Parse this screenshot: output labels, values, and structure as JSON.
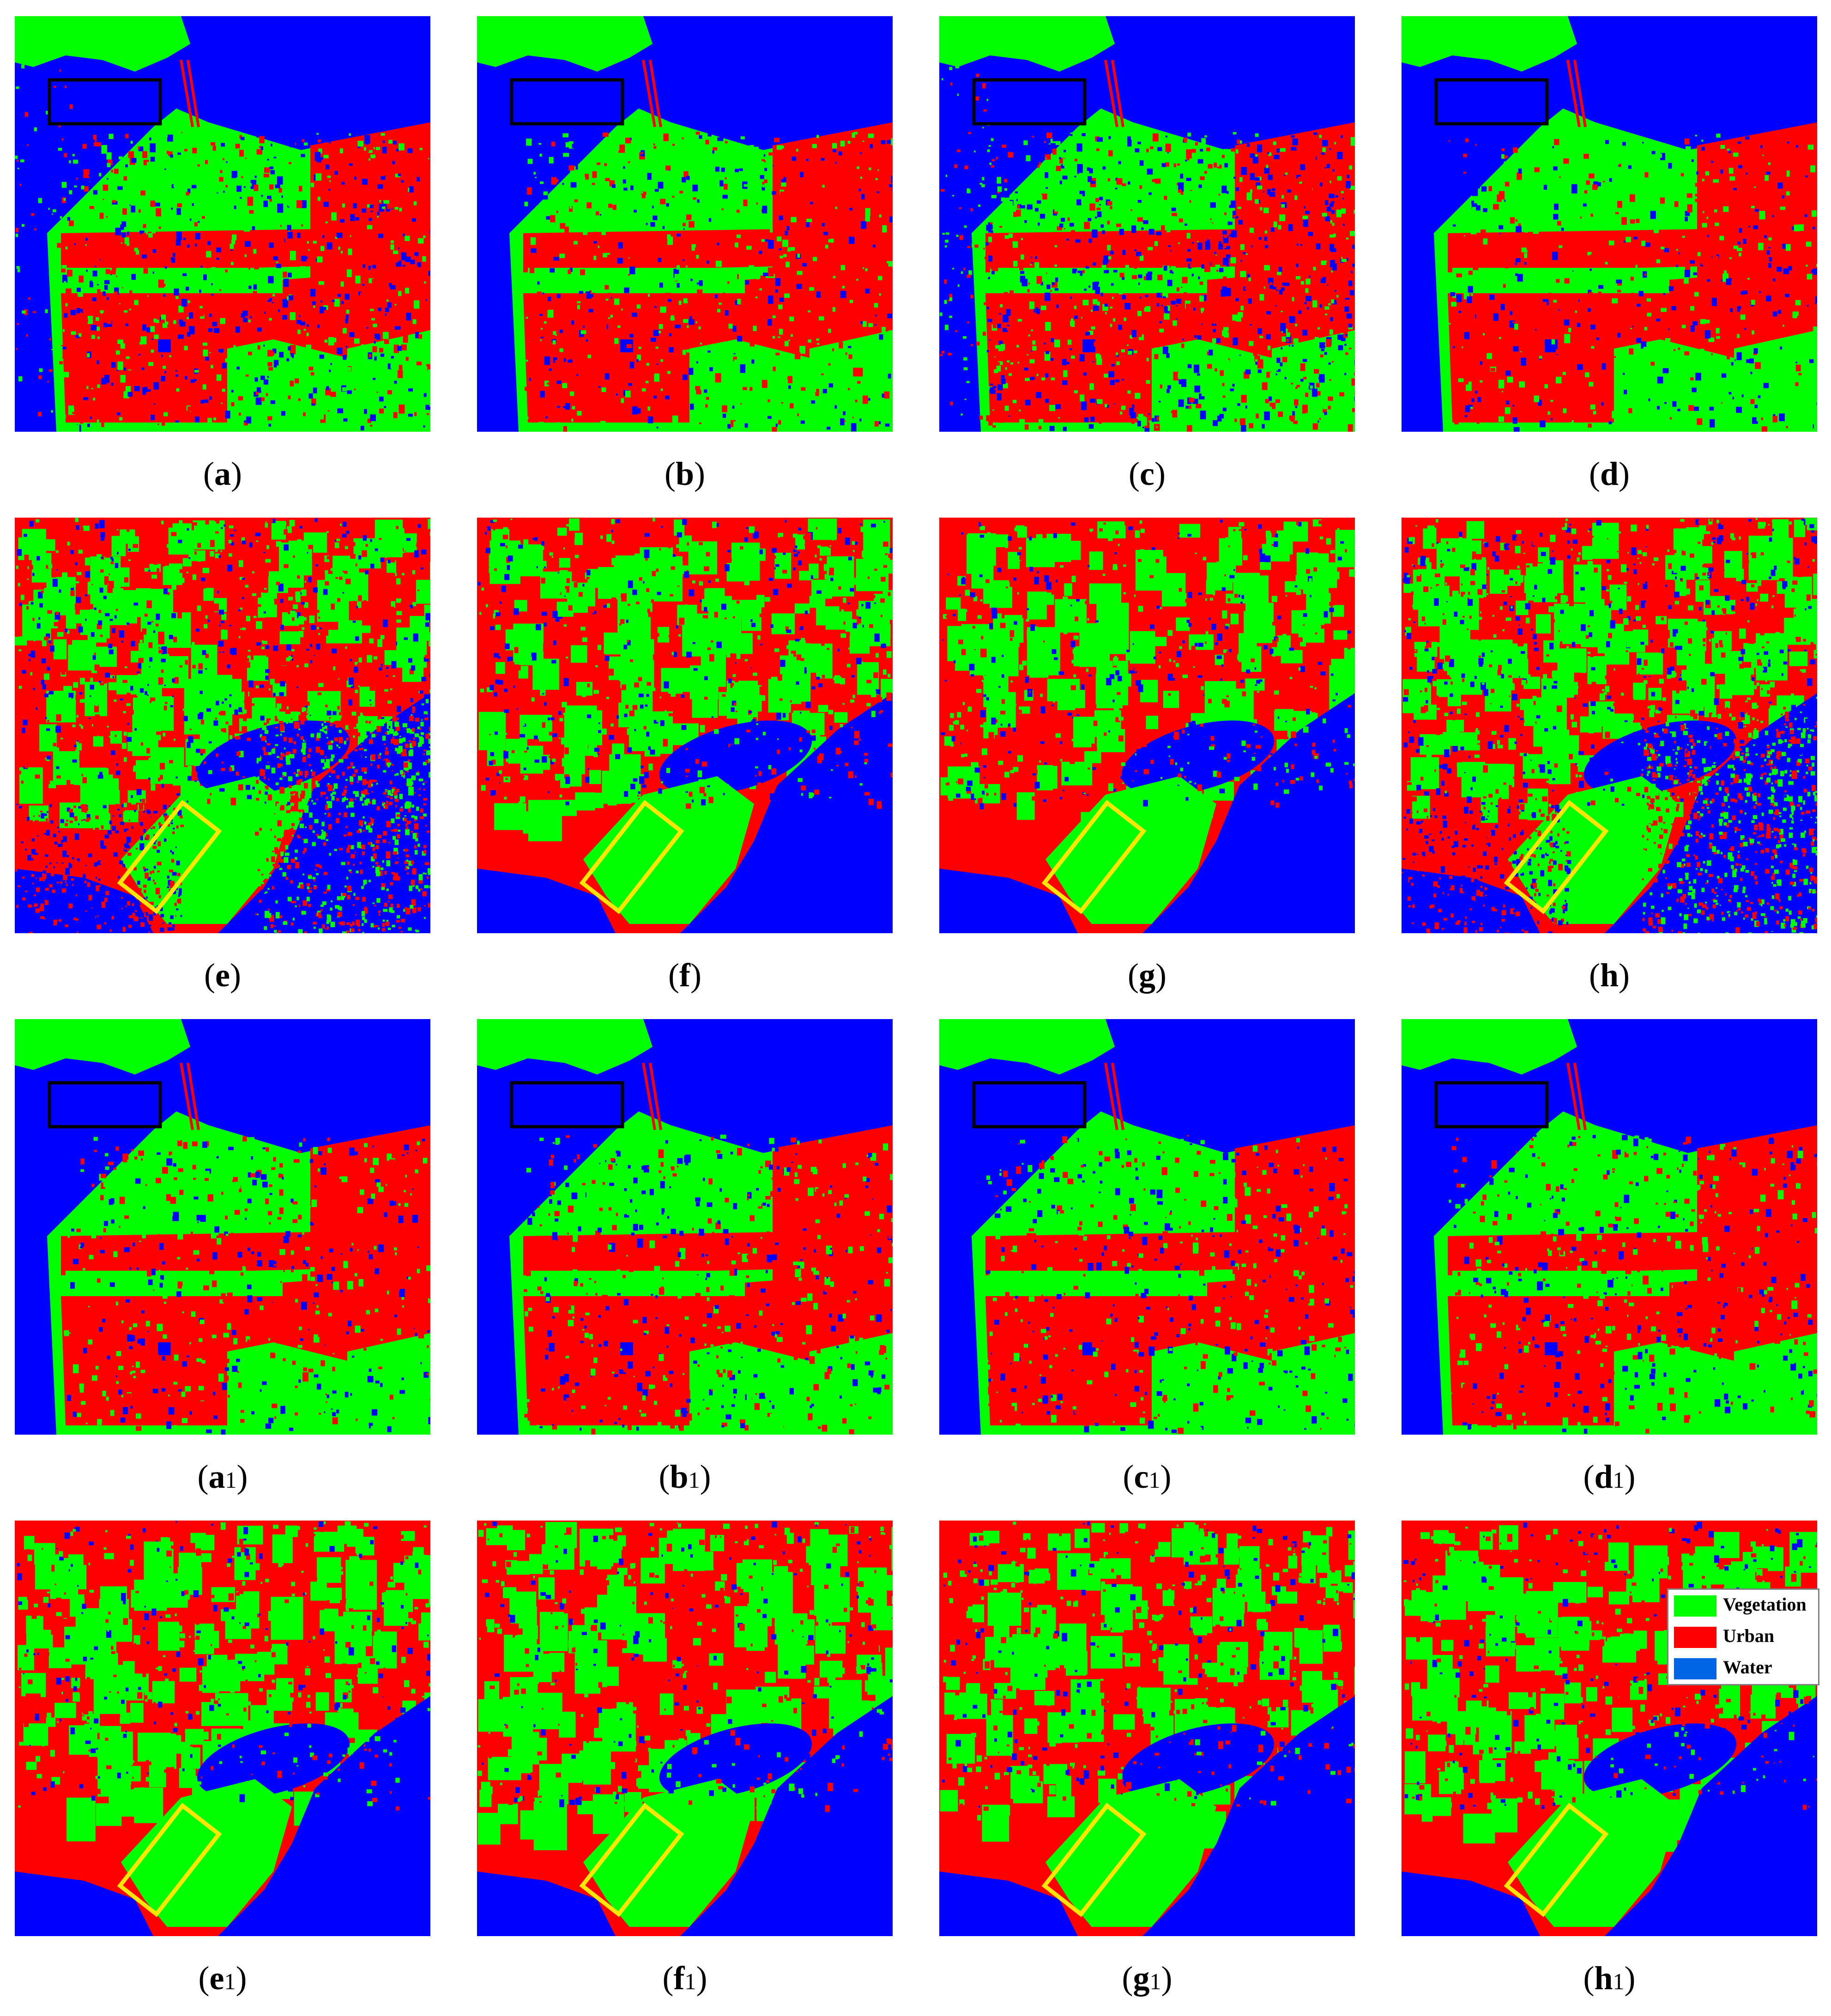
{
  "colors": {
    "vegetation": "#00ff00",
    "urban": "#ff0000",
    "water": "#0000ff",
    "legend_water": "#0064e6",
    "box_black": "#000000",
    "box_yellow": "#ffe600"
  },
  "panels": [
    {
      "id": "a",
      "letter": "a",
      "sub": "",
      "scene": "sf",
      "box": "black",
      "noise": 0.55
    },
    {
      "id": "b",
      "letter": "b",
      "sub": "",
      "scene": "sf",
      "box": "black",
      "noise": 0.35
    },
    {
      "id": "c",
      "letter": "c",
      "sub": "",
      "scene": "sf",
      "box": "black",
      "noise": 0.75
    },
    {
      "id": "d",
      "letter": "d",
      "sub": "",
      "scene": "sf",
      "box": "black",
      "noise": 0.25
    },
    {
      "id": "e",
      "letter": "e",
      "sub": "",
      "scene": "coast",
      "box": "yellow",
      "noise": 0.85,
      "sea": "speckle"
    },
    {
      "id": "f",
      "letter": "f",
      "sub": "",
      "scene": "coast",
      "box": "yellow",
      "noise": 0.5,
      "sea": "solid"
    },
    {
      "id": "g",
      "letter": "g",
      "sub": "",
      "scene": "coast",
      "box": "yellow",
      "noise": 0.4,
      "sea": "solid"
    },
    {
      "id": "h",
      "letter": "h",
      "sub": "",
      "scene": "coast",
      "box": "yellow",
      "noise": 0.8,
      "sea": "speckle"
    },
    {
      "id": "a1",
      "letter": "a",
      "sub": "1",
      "scene": "sf",
      "box": "black",
      "noise": 0.3
    },
    {
      "id": "b1",
      "letter": "b",
      "sub": "1",
      "scene": "sf",
      "box": "black",
      "noise": 0.3
    },
    {
      "id": "c1",
      "letter": "c",
      "sub": "1",
      "scene": "sf",
      "box": "black",
      "noise": 0.3
    },
    {
      "id": "d1",
      "letter": "d",
      "sub": "1",
      "scene": "sf",
      "box": "black",
      "noise": 0.3
    },
    {
      "id": "e1",
      "letter": "e",
      "sub": "1",
      "scene": "coast",
      "box": "yellow",
      "noise": 0.3,
      "sea": "solid"
    },
    {
      "id": "f1",
      "letter": "f",
      "sub": "1",
      "scene": "coast",
      "box": "yellow",
      "noise": 0.3,
      "sea": "solid"
    },
    {
      "id": "g1",
      "letter": "g",
      "sub": "1",
      "scene": "coast",
      "box": "yellow",
      "noise": 0.3,
      "sea": "solid"
    },
    {
      "id": "h1",
      "letter": "h",
      "sub": "1",
      "scene": "coast",
      "box": "yellow",
      "noise": 0.3,
      "sea": "solid"
    }
  ],
  "legend": {
    "items": [
      {
        "label": "Vegetation",
        "color": "#00ff00"
      },
      {
        "label": "Urban",
        "color": "#ff0000"
      },
      {
        "label": "Water",
        "color": "#0064e6"
      }
    ]
  }
}
